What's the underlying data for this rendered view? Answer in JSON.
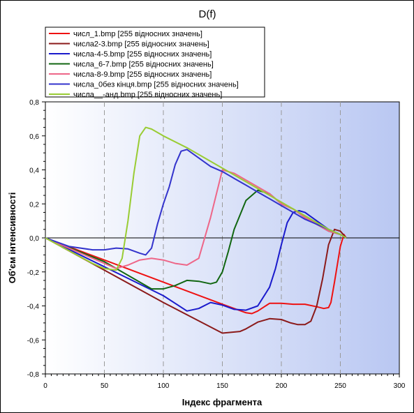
{
  "chart_data": {
    "type": "line",
    "title": "D(f)",
    "xlabel": "Індекс фрагмента",
    "ylabel": "Об'єм інтенсивності",
    "xlim": [
      0,
      300
    ],
    "ylim": [
      -0.8,
      0.8
    ],
    "x_ticks": [
      0,
      50,
      100,
      150,
      200,
      250,
      300
    ],
    "y_ticks": [
      -0.8,
      -0.6,
      -0.4,
      -0.2,
      0.0,
      0.2,
      0.4,
      0.6,
      0.8
    ],
    "x_tick_labels": [
      "0",
      "50",
      "100",
      "150",
      "200",
      "250",
      "300"
    ],
    "y_tick_labels": [
      "-0,8",
      "-0,6",
      "-0,4",
      "-0,2",
      "0,0",
      "0,2",
      "0,4",
      "0,6",
      "0,8"
    ],
    "vertical_gridlines_at": [
      50,
      100,
      150,
      200,
      250
    ],
    "zero_line": true,
    "legend_position": "top",
    "series": [
      {
        "name": "числ_1.bmp [255 відносних значень]",
        "color": "#ee1111",
        "x": [
          0,
          50,
          100,
          150,
          160,
          170,
          175,
          180,
          190,
          200,
          210,
          220,
          230,
          236,
          240,
          242,
          245,
          250,
          253,
          255
        ],
        "y": [
          0,
          -0.13,
          -0.26,
          -0.39,
          -0.415,
          -0.44,
          -0.445,
          -0.43,
          -0.385,
          -0.385,
          -0.39,
          -0.39,
          -0.405,
          -0.415,
          -0.41,
          -0.38,
          -0.26,
          -0.05,
          0.02,
          0.0
        ]
      },
      {
        "name": "числа2-3.bmp [255 відносних значень]",
        "color": "#8b1a1a",
        "x": [
          0,
          50,
          100,
          150,
          165,
          170,
          180,
          190,
          200,
          208,
          214,
          220,
          225,
          230,
          235,
          240,
          245,
          250,
          255
        ],
        "y": [
          0,
          -0.19,
          -0.38,
          -0.56,
          -0.55,
          -0.535,
          -0.495,
          -0.475,
          -0.48,
          -0.5,
          -0.51,
          -0.51,
          -0.49,
          -0.4,
          -0.24,
          -0.04,
          0.05,
          0.04,
          0.0
        ]
      },
      {
        "name": "числа-4-5.bmp [255 відносних значень]",
        "color": "#1a1acc",
        "x": [
          0,
          50,
          100,
          110,
          120,
          130,
          140,
          150,
          160,
          170,
          180,
          190,
          195,
          200,
          205,
          210,
          215,
          220,
          230,
          240,
          250,
          255
        ],
        "y": [
          0,
          -0.17,
          -0.34,
          -0.385,
          -0.43,
          -0.415,
          -0.38,
          -0.395,
          -0.42,
          -0.425,
          -0.4,
          -0.29,
          -0.18,
          -0.04,
          0.09,
          0.15,
          0.16,
          0.15,
          0.1,
          0.05,
          0.02,
          0.0
        ]
      },
      {
        "name": "числа_6-7.bmp [255 відносних значень]",
        "color": "#116611",
        "x": [
          0,
          50,
          90,
          100,
          110,
          120,
          130,
          140,
          145,
          150,
          155,
          160,
          170,
          180,
          190,
          200,
          210,
          220,
          230,
          240,
          250,
          255
        ],
        "y": [
          0,
          -0.14,
          -0.3,
          -0.3,
          -0.28,
          -0.25,
          -0.255,
          -0.27,
          -0.26,
          -0.2,
          -0.08,
          0.05,
          0.22,
          0.28,
          0.26,
          0.2,
          0.17,
          0.12,
          0.08,
          0.04,
          0.02,
          0.0
        ]
      },
      {
        "name": "числа-8-9.bmp [255 відносних значень]",
        "color": "#ee6688",
        "x": [
          0,
          50,
          60,
          70,
          80,
          90,
          100,
          110,
          120,
          130,
          140,
          150,
          160,
          170,
          180,
          190,
          200,
          210,
          220,
          230,
          240,
          250,
          255
        ],
        "y": [
          0,
          -0.15,
          -0.18,
          -0.16,
          -0.13,
          -0.12,
          -0.13,
          -0.15,
          -0.16,
          -0.12,
          0.12,
          0.4,
          0.38,
          0.34,
          0.3,
          0.26,
          0.2,
          0.17,
          0.12,
          0.08,
          0.04,
          0.02,
          0.0
        ]
      },
      {
        "name": "числа_0без кінця.bmp [255 відносних значень]",
        "color": "#3333cc",
        "x": [
          0,
          20,
          40,
          50,
          60,
          70,
          80,
          85,
          90,
          95,
          100,
          105,
          110,
          115,
          120,
          130,
          140,
          150,
          160,
          170,
          180,
          190,
          200,
          210,
          220,
          230,
          240,
          250,
          255
        ],
        "y": [
          0,
          -0.05,
          -0.07,
          -0.07,
          -0.06,
          -0.065,
          -0.09,
          -0.1,
          -0.06,
          0.08,
          0.2,
          0.3,
          0.43,
          0.51,
          0.52,
          0.47,
          0.42,
          0.39,
          0.35,
          0.31,
          0.27,
          0.23,
          0.19,
          0.15,
          0.11,
          0.08,
          0.05,
          0.02,
          0.0
        ]
      },
      {
        "name": "числа__-анд.bmp [255 відносних значень]",
        "color": "#99cc33",
        "x": [
          0,
          40,
          50,
          60,
          65,
          70,
          75,
          80,
          85,
          90,
          100,
          120,
          140,
          160,
          180,
          200,
          220,
          240,
          250,
          255
        ],
        "y": [
          0,
          -0.15,
          -0.18,
          -0.19,
          -0.12,
          0.1,
          0.38,
          0.6,
          0.65,
          0.64,
          0.6,
          0.53,
          0.45,
          0.37,
          0.29,
          0.21,
          0.13,
          0.05,
          0.02,
          0.0
        ]
      }
    ]
  }
}
